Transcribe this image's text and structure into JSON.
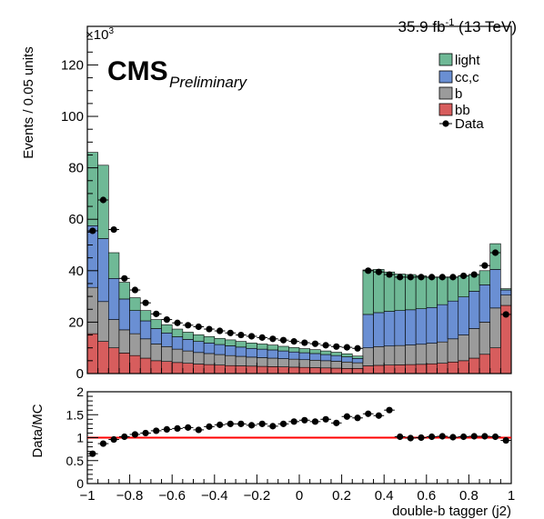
{
  "header": {
    "lumi": "35.9 fb",
    "lumi_exp": "-1",
    "energy": " (13 TeV)",
    "cms": "CMS",
    "preliminary": "Preliminary",
    "multiplier_base": "×10",
    "multiplier_exp": "3"
  },
  "colors": {
    "light": "#6fb996",
    "cc": "#6a8fd3",
    "b": "#9b9b9b",
    "bb": "#d75d5d",
    "data": "#000000",
    "ratio_line": "#ff0000"
  },
  "chart_data": [
    {
      "type": "bar",
      "stacked": true,
      "xlabel": "double-b tagger (j2)",
      "ylabel": "Events / 0.05 units",
      "xlim": [
        -1,
        1
      ],
      "ylim": [
        0,
        135
      ],
      "y_unit_multiplier": 1000,
      "x": [
        -0.975,
        -0.925,
        -0.875,
        -0.825,
        -0.775,
        -0.725,
        -0.675,
        -0.625,
        -0.575,
        -0.525,
        -0.475,
        -0.425,
        -0.375,
        -0.325,
        -0.275,
        -0.225,
        -0.175,
        -0.125,
        -0.075,
        -0.025,
        0.025,
        0.075,
        0.125,
        0.175,
        0.225,
        0.275,
        0.325,
        0.375,
        0.425,
        0.475,
        0.525,
        0.575,
        0.625,
        0.675,
        0.725,
        0.775,
        0.825,
        0.875,
        0.925,
        0.975
      ],
      "x_tick_labels": [
        "−1",
        "−0.8",
        "−0.6",
        "−0.4",
        "−0.2",
        "0",
        "0.2",
        "0.4",
        "0.6",
        "0.8",
        "1"
      ],
      "x_ticks": [
        -1,
        -0.8,
        -0.6,
        -0.4,
        -0.2,
        0,
        0.2,
        0.4,
        0.6,
        0.8,
        1
      ],
      "y_tick_labels": [
        "0",
        "20",
        "40",
        "60",
        "80",
        "100",
        "120"
      ],
      "y_ticks": [
        0,
        20,
        40,
        60,
        80,
        100,
        120
      ],
      "series": [
        {
          "name": "bb",
          "values": [
            15.5,
            12.5,
            10,
            8,
            7,
            6,
            5,
            4.7,
            4.3,
            4,
            3.7,
            3.5,
            3.3,
            3.1,
            3,
            2.9,
            2.8,
            2.7,
            2.6,
            2.5,
            2.4,
            2.3,
            2.2,
            2.1,
            2,
            2,
            3,
            3.2,
            3.3,
            3.4,
            3.5,
            3.6,
            3.8,
            4,
            4.5,
            5,
            6,
            7.5,
            10,
            26.5
          ]
        },
        {
          "name": "b",
          "values": [
            18,
            15.5,
            11,
            9,
            8.5,
            7.5,
            6.5,
            5.8,
            5.2,
            4.8,
            4.5,
            4.3,
            4.1,
            3.9,
            3.7,
            3.5,
            3.4,
            3.3,
            3.2,
            3.1,
            3,
            2.9,
            2.8,
            2.7,
            2.5,
            2.2,
            7,
            7.3,
            7.4,
            7.5,
            7.6,
            7.8,
            8,
            8.3,
            9,
            10,
            11.5,
            12.5,
            15.5,
            4
          ]
        },
        {
          "name": "cc,c",
          "values": [
            24,
            24.5,
            16,
            12,
            9,
            7,
            6,
            5.3,
            4.8,
            4.5,
            4.3,
            4.1,
            3.9,
            3.8,
            3.6,
            3.4,
            3.3,
            3.2,
            3,
            2.8,
            2.7,
            2.6,
            2.4,
            2.2,
            2,
            1.7,
            13,
            13.2,
            13.5,
            13.6,
            13.7,
            13.8,
            13.9,
            14.5,
            14.7,
            14.8,
            14.5,
            14.5,
            15,
            2
          ]
        },
        {
          "name": "light",
          "values": [
            28.5,
            28.5,
            10,
            6.5,
            5,
            4,
            3.5,
            3.2,
            3,
            2.8,
            2.6,
            2.5,
            2.4,
            2.3,
            2.2,
            2.1,
            2,
            1.9,
            1.8,
            1.7,
            1.6,
            1.5,
            1.4,
            1.3,
            1.2,
            0.9,
            17.3,
            16.8,
            15.3,
            14.2,
            13.7,
            12.8,
            11.8,
            10.7,
            9.3,
            8.2,
            6.5,
            5.5,
            10,
            0.5
          ]
        }
      ],
      "data": [
        55.5,
        67.5,
        56,
        37,
        32.5,
        27.5,
        23.2,
        21,
        19.7,
        18.8,
        18.2,
        17.3,
        16.6,
        15.8,
        15,
        14.5,
        14,
        13.5,
        13,
        12.5,
        12,
        11.6,
        11,
        10.5,
        10.2,
        9.8,
        40,
        39.5,
        38.5,
        37.5,
        37.5,
        37.5,
        37.5,
        37.5,
        37.5,
        38,
        38.5,
        42,
        47,
        23
      ],
      "legend": [
        "light",
        "cc,c",
        "b",
        "bb",
        "Data"
      ],
      "legend_labels": {
        "light": "light",
        "cc": "cc,c",
        "b": "b",
        "bb": "bb",
        "data": "Data"
      },
      "legend_position": "top-right"
    },
    {
      "type": "scatter",
      "xlabel": "double-b tagger (j2)",
      "ylabel": "Data/MC",
      "xlim": [
        -1,
        1
      ],
      "ylim": [
        0,
        2
      ],
      "y_ticks": [
        0,
        0.5,
        1,
        1.5,
        2
      ],
      "y_tick_labels": [
        "0",
        "0.5",
        "1",
        "1.5",
        "2"
      ],
      "reference_line": 1,
      "x": [
        -0.975,
        -0.925,
        -0.875,
        -0.825,
        -0.775,
        -0.725,
        -0.675,
        -0.625,
        -0.575,
        -0.525,
        -0.475,
        -0.425,
        -0.375,
        -0.325,
        -0.275,
        -0.225,
        -0.175,
        -0.125,
        -0.075,
        -0.025,
        0.025,
        0.075,
        0.125,
        0.175,
        0.225,
        0.275,
        0.325,
        0.375,
        0.425,
        0.475,
        0.525,
        0.575,
        0.625,
        0.675,
        0.725,
        0.775,
        0.825,
        0.875,
        0.925,
        0.975
      ],
      "values": [
        0.65,
        0.87,
        0.96,
        1.02,
        1.07,
        1.1,
        1.15,
        1.18,
        1.2,
        1.22,
        1.17,
        1.24,
        1.28,
        1.3,
        1.3,
        1.27,
        1.3,
        1.25,
        1.3,
        1.35,
        1.38,
        1.35,
        1.4,
        1.32,
        1.46,
        1.43,
        1.52,
        1.48,
        1.6,
        1.02,
        0.99,
        1.0,
        1.02,
        1.03,
        1.01,
        1.02,
        1.03,
        1.03,
        1.02,
        0.94
      ]
    }
  ]
}
